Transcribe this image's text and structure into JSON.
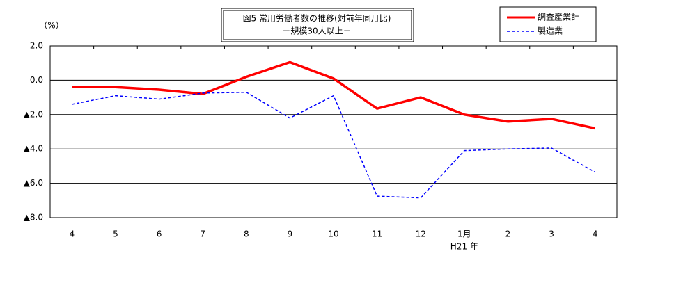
{
  "chart_data": {
    "type": "line",
    "title": "図5 常用労働者数の推移(対前年同月比)",
    "subtitle": "－規模30人以上－",
    "y_label": "（%）",
    "x_annotation": "H21 年",
    "categories": [
      "4",
      "5",
      "6",
      "7",
      "8",
      "9",
      "10",
      "11",
      "12",
      "1月",
      "2",
      "3",
      "4"
    ],
    "series": [
      {
        "name": "調査産業計",
        "color": "#ff0000",
        "style": "solid",
        "values": [
          -0.4,
          -0.4,
          -0.55,
          -0.8,
          0.2,
          1.05,
          0.1,
          -1.65,
          -1.0,
          -2.0,
          -2.4,
          -2.25,
          -2.8
        ]
      },
      {
        "name": "製造業",
        "color": "#0000ff",
        "style": "dashed",
        "values": [
          -1.4,
          -0.9,
          -1.1,
          -0.75,
          -0.7,
          -2.2,
          -0.9,
          -6.75,
          -6.85,
          -4.1,
          -4.0,
          -3.95,
          -5.35
        ]
      }
    ],
    "ylim": [
      -8,
      2
    ],
    "yticks": [
      {
        "value": 2,
        "label": "2.0"
      },
      {
        "value": 0,
        "label": "0.0"
      },
      {
        "value": -2,
        "label": "▲2.0"
      },
      {
        "value": -4,
        "label": "▲4.0"
      },
      {
        "value": -6,
        "label": "▲6.0"
      },
      {
        "value": -8,
        "label": "▲8.0"
      }
    ],
    "grid": true,
    "legend": "top-right"
  }
}
